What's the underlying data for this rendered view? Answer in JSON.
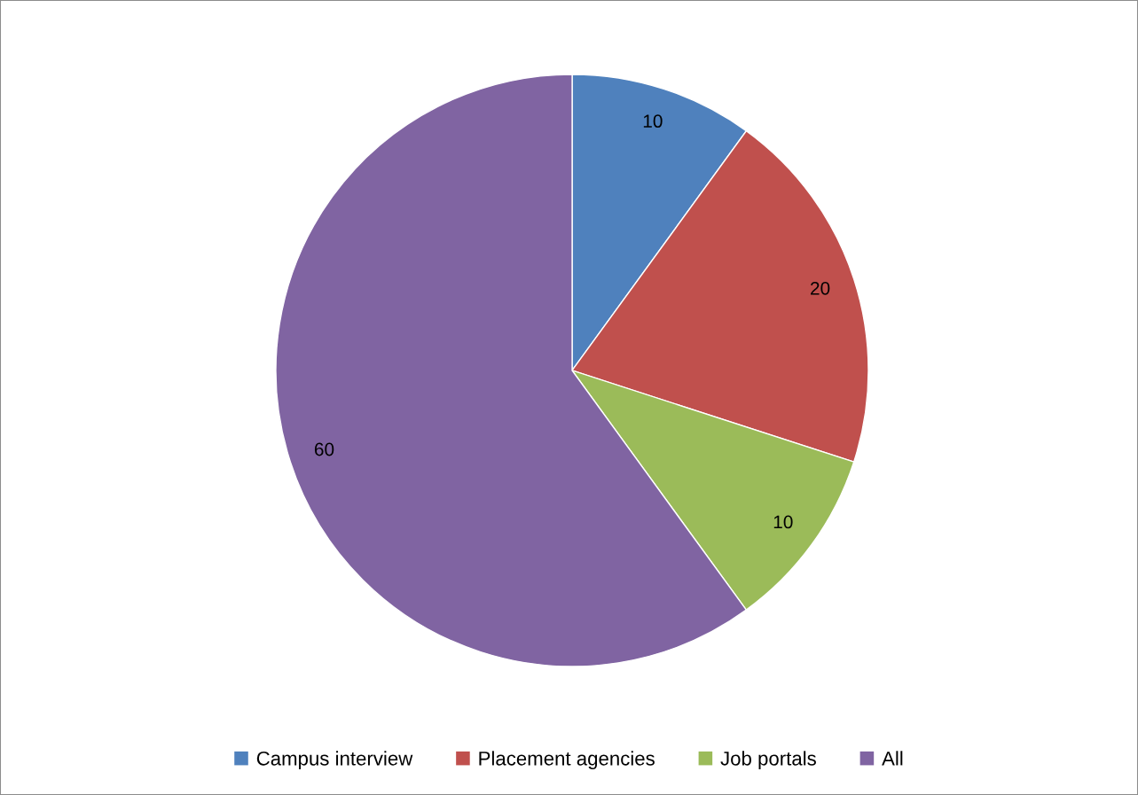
{
  "chart_data": {
    "type": "pie",
    "categories": [
      "Campus interview",
      "Placement agencies",
      "Job portals",
      "All"
    ],
    "values": [
      10,
      20,
      10,
      60
    ],
    "colors": [
      "#4f81bd",
      "#c0504d",
      "#9bbb59",
      "#8064a2"
    ],
    "data_labels": true,
    "legend": "bottom"
  }
}
